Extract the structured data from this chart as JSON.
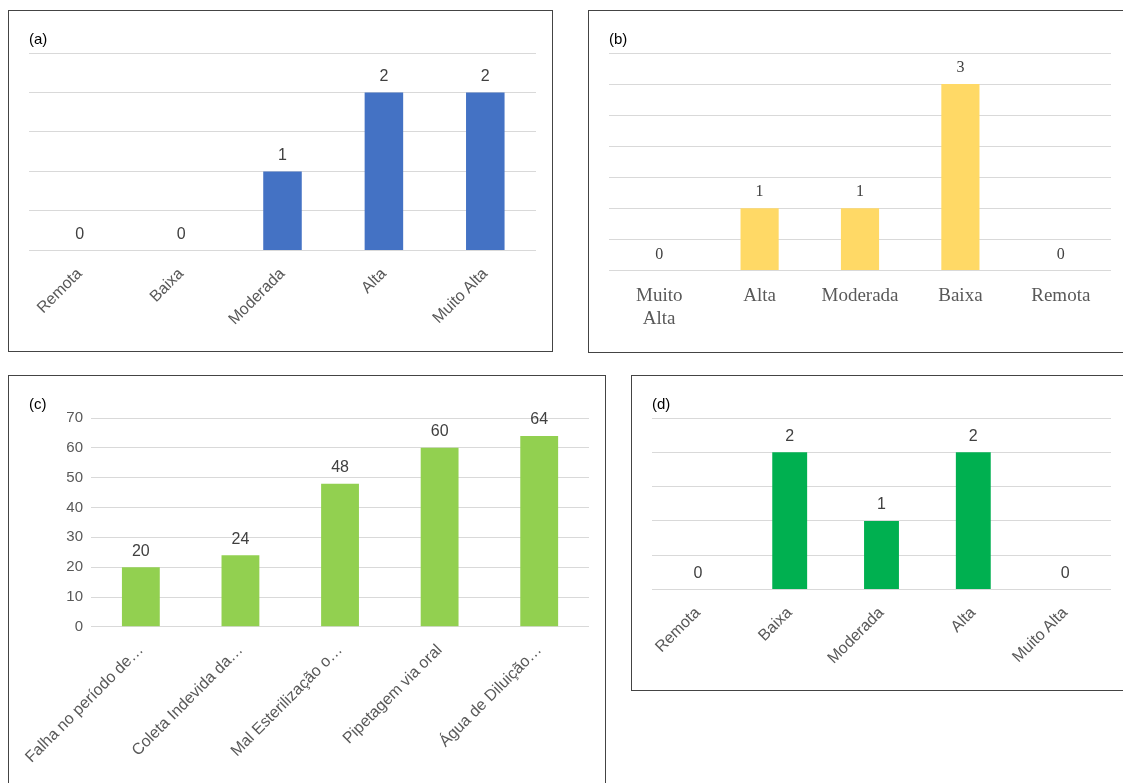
{
  "chart_data": [
    {
      "type": "bar",
      "title": "(a)",
      "categories": [
        "Remota",
        "Baixa",
        "Moderada",
        "Alta",
        "Muito Alta"
      ],
      "values": [
        0,
        0,
        1,
        2,
        2
      ],
      "color": "#4472c4",
      "ylim": [
        0,
        2.5
      ],
      "yticks": [
        {
          "value": 0,
          "label": null
        },
        {
          "value": 0.5,
          "label": null
        },
        {
          "value": 1,
          "label": null
        },
        {
          "value": 1.5,
          "label": null
        },
        {
          "value": 2,
          "label": null
        },
        {
          "value": 2.5,
          "label": null
        }
      ],
      "grid": "y",
      "tick_labels": "x",
      "data_labels": true
    },
    {
      "type": "bar",
      "title": "(b)",
      "categories": [
        "Muito Alta",
        "Alta",
        "Moderada",
        "Baixa",
        "Remota"
      ],
      "values": [
        0,
        1,
        1,
        3,
        0
      ],
      "color": "#ffd966",
      "ylim": [
        0,
        3.5
      ],
      "yticks": [
        {
          "value": 0,
          "label": null
        },
        {
          "value": 0.5,
          "label": null
        },
        {
          "value": 1,
          "label": null
        },
        {
          "value": 1.5,
          "label": null
        },
        {
          "value": 2,
          "label": null
        },
        {
          "value": 2.5,
          "label": null
        },
        {
          "value": 3,
          "label": null
        },
        {
          "value": 3.5,
          "label": null
        }
      ],
      "grid": "y",
      "tick_labels": "x",
      "data_labels": true
    },
    {
      "type": "bar",
      "title": "(c)",
      "categories": [
        "Falha no período de…",
        "Coleta Indevida da…",
        "Mal Esterilização o…",
        "Pipetagem via oral",
        "Água de Diluição…"
      ],
      "values": [
        20,
        24,
        48,
        60,
        64
      ],
      "color": "#92d050",
      "ylim": [
        0,
        70
      ],
      "yticks": [
        0,
        10,
        20,
        30,
        40,
        50,
        60,
        70
      ],
      "grid": "y",
      "data_labels": true
    },
    {
      "type": "bar",
      "title": "(d)",
      "categories": [
        "Remota",
        "Baixa",
        "Moderada",
        "Alta",
        "Muito Alta"
      ],
      "values": [
        0,
        2,
        1,
        2,
        0
      ],
      "color": "#00b050",
      "ylim": [
        0,
        2.5
      ],
      "yticks": [
        {
          "value": 0,
          "label": null
        },
        {
          "value": 0.5,
          "label": null
        },
        {
          "value": 1,
          "label": null
        },
        {
          "value": 1.5,
          "label": null
        },
        {
          "value": 2,
          "label": null
        },
        {
          "value": 2.5,
          "label": null
        }
      ],
      "grid": "y",
      "tick_labels": "x",
      "data_labels": true
    }
  ]
}
